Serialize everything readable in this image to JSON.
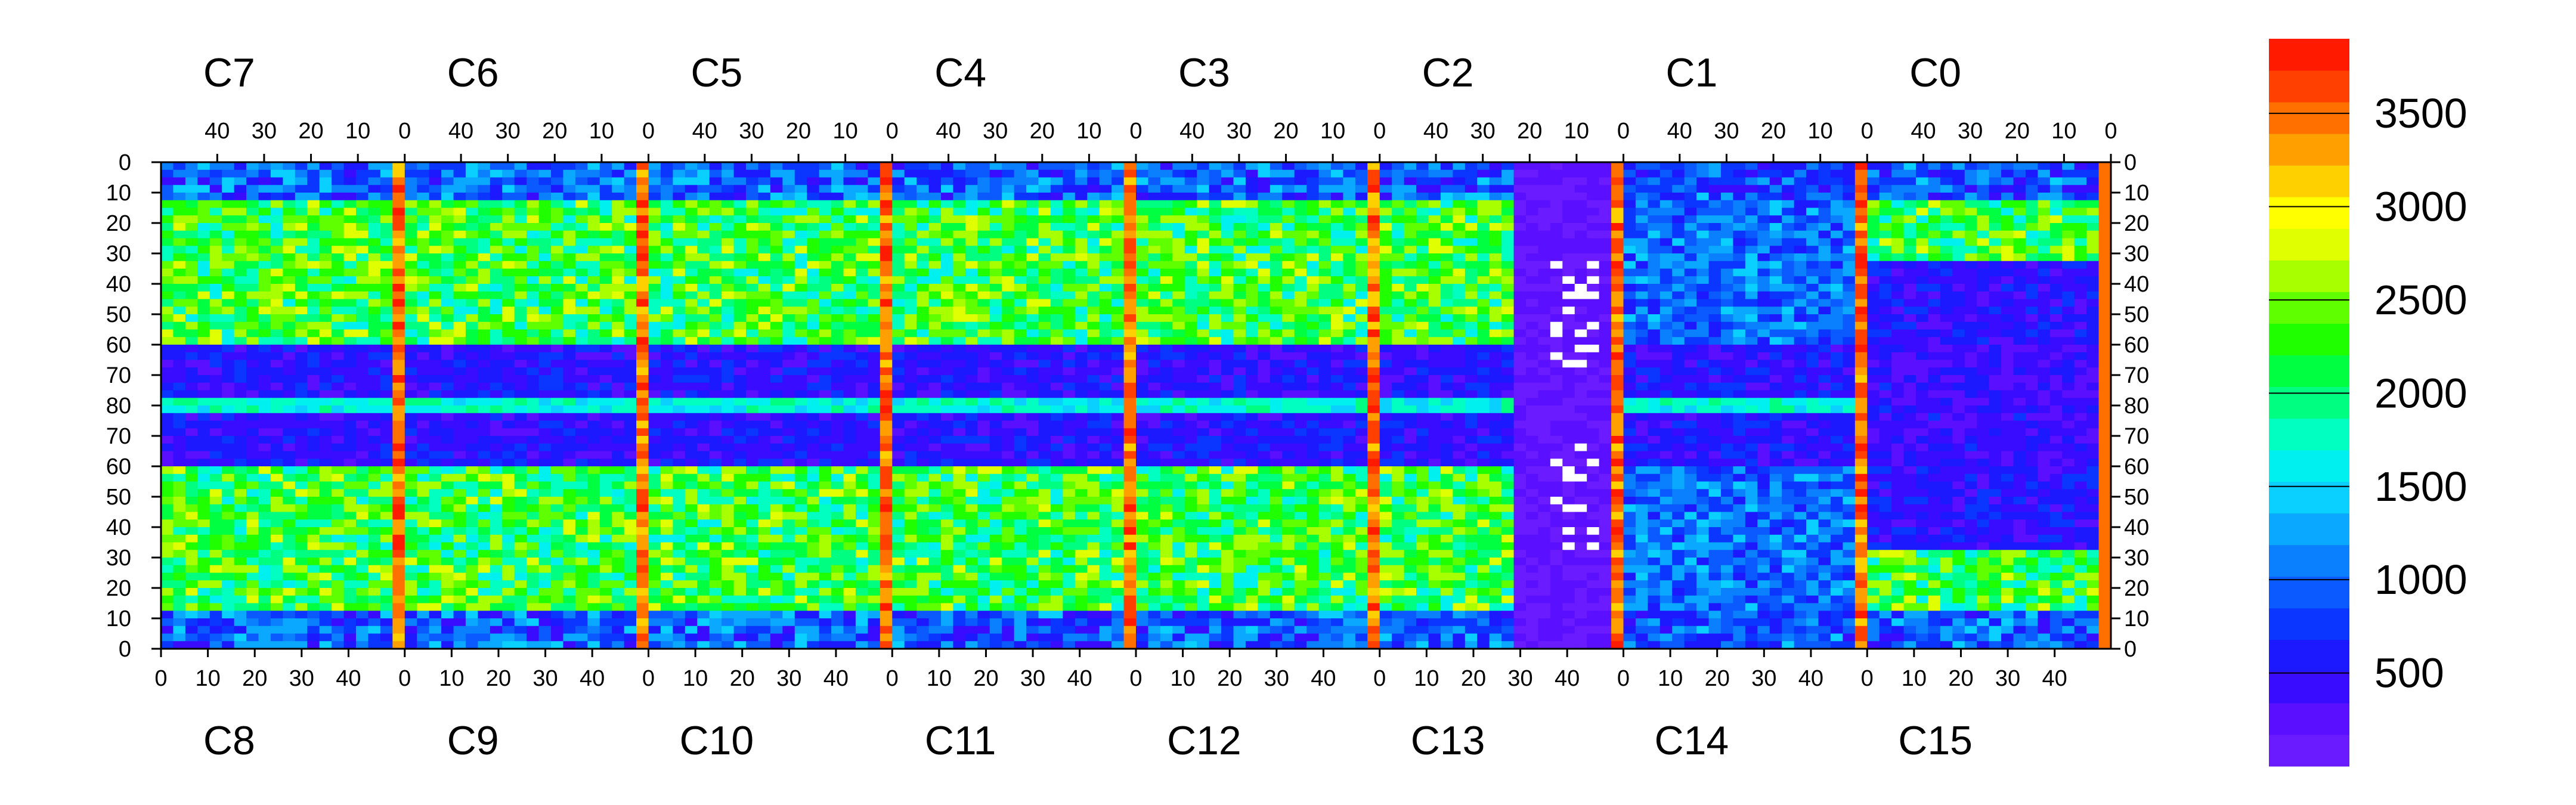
{
  "chart_data": {
    "type": "heatmap",
    "title": "",
    "xlabel": "",
    "ylabel": "",
    "top_chip_labels": [
      "C7",
      "C6",
      "C5",
      "C4",
      "C3",
      "C2",
      "C1",
      "C0"
    ],
    "bottom_chip_labels": [
      "C8",
      "C9",
      "C10",
      "C11",
      "C12",
      "C13",
      "C14",
      "C15"
    ],
    "top_x_ticks": [
      "40",
      "30",
      "20",
      "10",
      "0"
    ],
    "bottom_x_ticks": [
      "0",
      "10",
      "20",
      "30",
      "40"
    ],
    "left_y_ticks": [
      "0",
      "10",
      "20",
      "30",
      "40",
      "50",
      "60",
      "70",
      "80",
      "70",
      "60",
      "50",
      "40",
      "30",
      "20",
      "10",
      "0"
    ],
    "right_y_ticks": [
      "0",
      "10",
      "20",
      "30",
      "40",
      "50",
      "60",
      "70",
      "80",
      "70",
      "60",
      "50",
      "40",
      "30",
      "20",
      "10",
      "0"
    ],
    "colorbar": {
      "min": 0,
      "max": 3900,
      "ticks": [
        500,
        1000,
        1500,
        2000,
        2500,
        3000,
        3500
      ],
      "tick_labels": [
        "500",
        "1000",
        "1500",
        "2000",
        "2500",
        "3000",
        "3500"
      ],
      "palette": [
        "#6a1bff",
        "#5a10ff",
        "#3a0cff",
        "#1c18ff",
        "#0a36ff",
        "#0a5aff",
        "#0a80ff",
        "#0aa8ff",
        "#0ad0ff",
        "#00f0f0",
        "#00ffc0",
        "#00ff80",
        "#00ff40",
        "#20ff00",
        "#60ff00",
        "#a8ff00",
        "#e0ff00",
        "#ffff00",
        "#ffd000",
        "#ffa000",
        "#ff7000",
        "#ff4000",
        "#ff1a00"
      ]
    },
    "grid": {
      "chips_per_row": 8,
      "columns_per_chip": 52,
      "rows_per_half": 80
    },
    "features": {
      "hot_columns_chip_boundaries": true,
      "high_region_upper_rows": [
        10,
        60
      ],
      "low_region_center_rows": [
        60,
        80
      ],
      "saturated_cells_chip": "C2/C13"
    }
  }
}
